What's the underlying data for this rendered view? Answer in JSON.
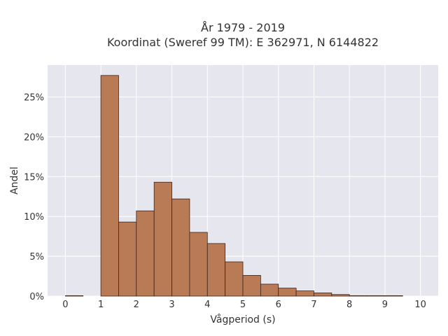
{
  "chart_data": {
    "type": "bar",
    "title_line1": "År 1979 - 2019",
    "title_line2": "Koordinat (Sweref 99 TM): E 362971, N 6144822",
    "xlabel": "Vågperiod (s)",
    "ylabel": "Andel",
    "bin_width": 0.5,
    "bins": [
      {
        "start": 0.0,
        "value": 0.0005
      },
      {
        "start": 0.5,
        "value": 0.0
      },
      {
        "start": 1.0,
        "value": 0.277
      },
      {
        "start": 1.5,
        "value": 0.093
      },
      {
        "start": 2.0,
        "value": 0.107
      },
      {
        "start": 2.5,
        "value": 0.143
      },
      {
        "start": 3.0,
        "value": 0.122
      },
      {
        "start": 3.5,
        "value": 0.08
      },
      {
        "start": 4.0,
        "value": 0.066
      },
      {
        "start": 4.5,
        "value": 0.043
      },
      {
        "start": 5.0,
        "value": 0.026
      },
      {
        "start": 5.5,
        "value": 0.015
      },
      {
        "start": 6.0,
        "value": 0.01
      },
      {
        "start": 6.5,
        "value": 0.0065
      },
      {
        "start": 7.0,
        "value": 0.004
      },
      {
        "start": 7.5,
        "value": 0.002
      },
      {
        "start": 8.0,
        "value": 0.0005
      },
      {
        "start": 8.5,
        "value": 0.0003
      },
      {
        "start": 9.0,
        "value": 0.0003
      },
      {
        "start": 9.5,
        "value": 0.0
      }
    ],
    "x_ticks": [
      "0",
      "1",
      "2",
      "3",
      "4",
      "5",
      "6",
      "7",
      "8",
      "9",
      "10"
    ],
    "y_ticks": [
      "0%",
      "5%",
      "10%",
      "15%",
      "20%",
      "25%"
    ],
    "xlim": [
      -0.5,
      10.5
    ],
    "ylim": [
      0,
      0.29
    ],
    "grid": true,
    "bar_color": "#b97a56",
    "bar_edge_color": "#3a2418",
    "plot_bg": "#e6e6ef",
    "grid_color": "#ffffff"
  }
}
